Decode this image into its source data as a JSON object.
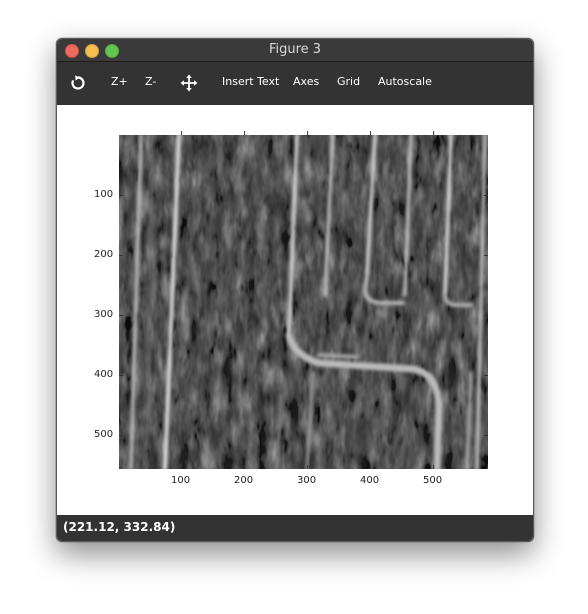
{
  "window": {
    "title": "Figure 3"
  },
  "toolbar": {
    "rotate_icon": "rotate-icon",
    "zoom_in_label": "Z+",
    "zoom_out_label": "Z-",
    "pan_icon": "move-arrows-icon",
    "insert_text_label": "Insert Text",
    "axes_label": "Axes",
    "grid_label": "Grid",
    "autoscale_label": "Autoscale"
  },
  "plot": {
    "x_ticks": [
      "100",
      "200",
      "300",
      "400",
      "500"
    ],
    "y_ticks": [
      "100",
      "200",
      "300",
      "400",
      "500"
    ],
    "image_style": "grayscale"
  },
  "status": {
    "coords": "(221.12, 332.84)"
  }
}
